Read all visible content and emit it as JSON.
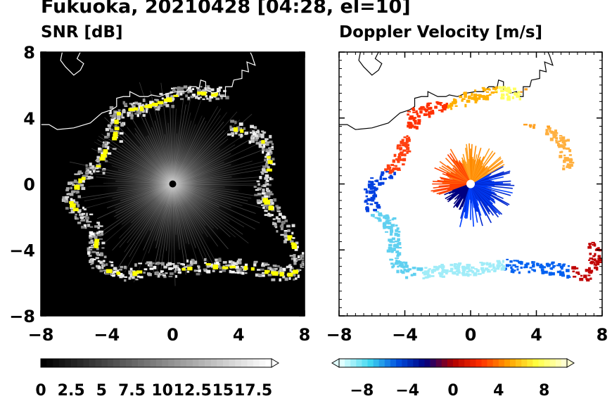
{
  "title": "Fukuoka, 20210428 [04:28, el=10]",
  "chart_data": [
    {
      "type": "heatmap",
      "title": "SNR [dB]",
      "xlim": [
        -8,
        8
      ],
      "ylim": [
        -8,
        8
      ],
      "xticks": [
        "−8",
        "−4",
        "0",
        "4",
        "8"
      ],
      "yticks": [
        "−8",
        "−4",
        "0",
        "4",
        "8"
      ],
      "colorbar": {
        "range": [
          0,
          19
        ],
        "extend": "max",
        "ticks": [
          "0",
          "2.5",
          "5",
          "7.5",
          "10",
          "12.5",
          "15",
          "17.5"
        ],
        "colors": [
          "#000000",
          "#ffffff",
          "#ffff00"
        ]
      },
      "grid": false,
      "background": "#000000",
      "radar_site": [
        0,
        0
      ]
    },
    {
      "type": "heatmap",
      "title": "Doppler Velocity [m/s]",
      "xlim": [
        -8,
        8
      ],
      "ylim": [
        -8,
        8
      ],
      "xticks": [
        "−8",
        "−4",
        "0",
        "4",
        "8"
      ],
      "yticks": [
        "",
        "",
        "",
        "",
        ""
      ],
      "colorbar": {
        "range": [
          -10,
          10
        ],
        "extend": "both",
        "ticks": [
          "−8",
          "−4",
          "0",
          "4",
          "8"
        ],
        "colors": [
          "#e0ffff",
          "#40d8f0",
          "#0050e0",
          "#000080",
          "#b00000",
          "#ff3000",
          "#ffa000",
          "#ffff40",
          "#ffffd0"
        ]
      },
      "grid": false,
      "background": "#ffffff",
      "radar_site": [
        0,
        0
      ]
    }
  ]
}
